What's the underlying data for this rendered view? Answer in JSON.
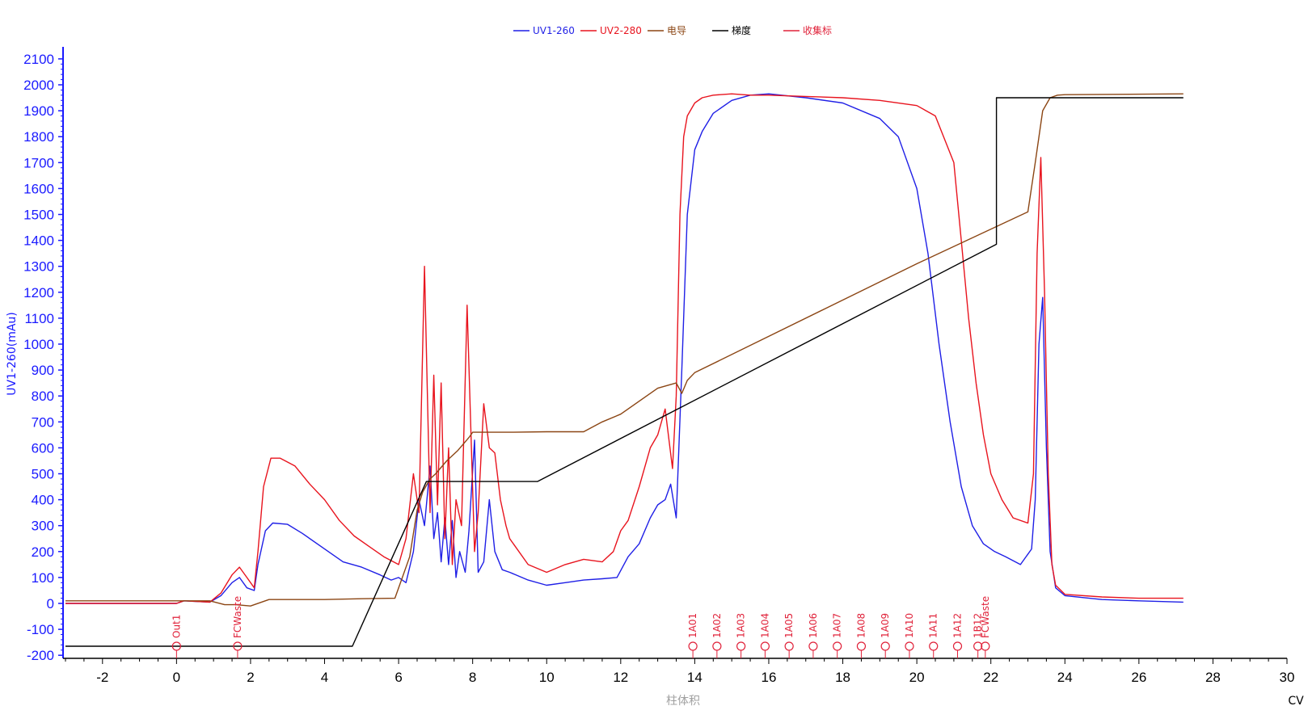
{
  "chart_data": {
    "type": "line",
    "legend_position": "top-center",
    "grid": false,
    "xlabel": "柱体积",
    "xunit": "CV",
    "ylabel": "UV1-260(mAu)",
    "xlim": [
      -3,
      30
    ],
    "ylim": [
      -200,
      2150
    ],
    "xticks": [
      -2,
      0,
      2,
      4,
      6,
      8,
      10,
      12,
      14,
      16,
      18,
      20,
      22,
      24,
      26,
      28,
      30
    ],
    "yticks": [
      -200,
      -100,
      0,
      100,
      200,
      300,
      400,
      500,
      600,
      700,
      800,
      900,
      1000,
      1100,
      1200,
      1300,
      1400,
      1500,
      1600,
      1700,
      1800,
      1900,
      2000,
      2100
    ],
    "colors": {
      "uv260": "#1f1fe6",
      "uv280": "#e8141e",
      "conductivity": "#8b4513",
      "gradient": "#000000",
      "fractions": "#e0223a",
      "axis": "#1a1aff"
    },
    "legend": [
      "UV1-260",
      "UV2-280",
      "电导",
      "梯度",
      "收集标"
    ],
    "series": [
      {
        "name": "UV1-260",
        "x": [
          -3,
          -2.9,
          0,
          0.2,
          0.9,
          1.2,
          1.5,
          1.7,
          1.9,
          2.1,
          2.2,
          2.4,
          2.6,
          3.0,
          3.4,
          4.0,
          4.5,
          5.0,
          5.5,
          5.8,
          6.0,
          6.2,
          6.4,
          6.55,
          6.7,
          6.85,
          6.95,
          7.05,
          7.15,
          7.25,
          7.35,
          7.45,
          7.55,
          7.65,
          7.8,
          7.9,
          8.05,
          8.15,
          8.3,
          8.45,
          8.6,
          8.8,
          9.0,
          9.5,
          10.0,
          10.5,
          11.0,
          11.5,
          11.9,
          12.2,
          12.5,
          12.8,
          13.0,
          13.2,
          13.35,
          13.5,
          13.65,
          13.8,
          14.0,
          14.2,
          14.5,
          15.0,
          15.5,
          16.0,
          17.0,
          18.0,
          19.0,
          19.5,
          20.0,
          20.3,
          20.6,
          20.9,
          21.2,
          21.5,
          21.8,
          22.1,
          22.4,
          22.8,
          23.1,
          23.2,
          23.3,
          23.4,
          23.5,
          23.6,
          23.75,
          24.0,
          25.0,
          26.0,
          27.2
        ],
        "y": [
          0,
          0,
          0,
          10,
          5,
          30,
          80,
          100,
          60,
          50,
          150,
          280,
          310,
          305,
          270,
          210,
          160,
          140,
          110,
          90,
          100,
          80,
          200,
          400,
          300,
          530,
          250,
          350,
          160,
          330,
          150,
          320,
          100,
          200,
          120,
          280,
          630,
          120,
          160,
          400,
          200,
          130,
          120,
          90,
          70,
          80,
          90,
          95,
          100,
          180,
          230,
          330,
          380,
          400,
          460,
          330,
          900,
          1500,
          1750,
          1820,
          1890,
          1940,
          1960,
          1965,
          1950,
          1930,
          1870,
          1800,
          1600,
          1350,
          1000,
          700,
          450,
          300,
          230,
          200,
          180,
          150,
          210,
          400,
          1000,
          1180,
          600,
          200,
          60,
          30,
          15,
          10,
          5
        ]
      },
      {
        "name": "UV2-280",
        "x": [
          -3,
          -2.9,
          0,
          0.2,
          0.9,
          1.2,
          1.5,
          1.7,
          1.9,
          2.1,
          2.2,
          2.35,
          2.55,
          2.8,
          3.2,
          3.6,
          4.0,
          4.4,
          4.8,
          5.2,
          5.6,
          6.0,
          6.2,
          6.4,
          6.55,
          6.7,
          6.85,
          6.95,
          7.05,
          7.15,
          7.25,
          7.35,
          7.45,
          7.55,
          7.7,
          7.85,
          8.05,
          8.15,
          8.3,
          8.45,
          8.6,
          8.75,
          8.9,
          9.0,
          9.5,
          10.0,
          10.5,
          11.0,
          11.5,
          11.8,
          12.0,
          12.2,
          12.5,
          12.8,
          13.0,
          13.2,
          13.4,
          13.5,
          13.6,
          13.7,
          13.8,
          14.0,
          14.2,
          14.5,
          15.0,
          15.5,
          16.0,
          17.0,
          18.0,
          19.0,
          20.0,
          20.5,
          21.0,
          21.2,
          21.4,
          21.6,
          21.8,
          22.0,
          22.3,
          22.6,
          23.0,
          23.15,
          23.25,
          23.35,
          23.45,
          23.55,
          23.65,
          23.75,
          24.0,
          25.0,
          26.0,
          27.2
        ],
        "y": [
          0,
          0,
          0,
          10,
          5,
          40,
          110,
          140,
          100,
          60,
          200,
          450,
          560,
          560,
          530,
          460,
          400,
          320,
          260,
          220,
          180,
          150,
          250,
          500,
          350,
          1300,
          350,
          880,
          380,
          850,
          250,
          600,
          150,
          400,
          300,
          1150,
          200,
          350,
          770,
          600,
          580,
          400,
          300,
          250,
          150,
          120,
          150,
          170,
          160,
          200,
          280,
          320,
          450,
          600,
          650,
          750,
          520,
          800,
          1500,
          1800,
          1880,
          1930,
          1950,
          1960,
          1965,
          1960,
          1960,
          1955,
          1950,
          1940,
          1920,
          1880,
          1700,
          1400,
          1100,
          850,
          650,
          500,
          400,
          330,
          310,
          500,
          1350,
          1720,
          1200,
          500,
          150,
          70,
          35,
          25,
          20,
          20
        ]
      },
      {
        "name": "电导",
        "x": [
          -3,
          0,
          0.9,
          1.3,
          1.6,
          2.0,
          2.5,
          3.0,
          4.0,
          5.0,
          5.9,
          6.1,
          6.3,
          6.5,
          6.65,
          6.85,
          7.0,
          7.3,
          7.6,
          7.9,
          8.0,
          9.0,
          10.0,
          11.0,
          11.5,
          12.0,
          13.0,
          13.5,
          13.65,
          13.8,
          14.0,
          20.0,
          23.0,
          23.2,
          23.4,
          23.6,
          23.8,
          24.0,
          27.2
        ],
        "y": [
          10,
          10,
          10,
          -5,
          -5,
          -10,
          15,
          15,
          15,
          18,
          20,
          100,
          180,
          360,
          430,
          480,
          500,
          550,
          590,
          640,
          660,
          660,
          662,
          662,
          700,
          730,
          830,
          850,
          810,
          860,
          890,
          1310,
          1510,
          1700,
          1900,
          1950,
          1960,
          1962,
          1965
        ]
      },
      {
        "name": "梯度",
        "x": [
          -3,
          4.75,
          6.75,
          9.75,
          22.15,
          22.15,
          27.2
        ],
        "y": [
          -165,
          -165,
          470,
          470,
          1385,
          1950,
          1950
        ]
      }
    ],
    "fractions": [
      {
        "x": 0.0,
        "label": "Out1"
      },
      {
        "x": 1.65,
        "label": "FCWaste"
      },
      {
        "x": 13.95,
        "label": "1A01"
      },
      {
        "x": 14.6,
        "label": "1A02"
      },
      {
        "x": 15.25,
        "label": "1A03"
      },
      {
        "x": 15.9,
        "label": "1A04"
      },
      {
        "x": 16.55,
        "label": "1A05"
      },
      {
        "x": 17.2,
        "label": "1A06"
      },
      {
        "x": 17.85,
        "label": "1A07"
      },
      {
        "x": 18.5,
        "label": "1A08"
      },
      {
        "x": 19.15,
        "label": "1A09"
      },
      {
        "x": 19.8,
        "label": "1A10"
      },
      {
        "x": 20.45,
        "label": "1A11"
      },
      {
        "x": 21.1,
        "label": "1A12"
      },
      {
        "x": 21.65,
        "label": "1B12"
      },
      {
        "x": 21.85,
        "label": "FCWaste"
      }
    ]
  }
}
